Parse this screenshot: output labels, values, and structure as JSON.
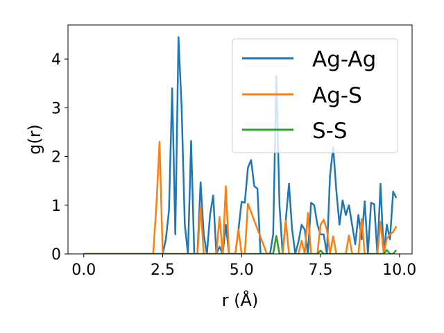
{
  "chart_data": {
    "type": "line",
    "title": "",
    "xlabel": "r (Å)",
    "ylabel": "g(r)",
    "xlim": [
      -0.5,
      10.4
    ],
    "ylim": [
      0,
      4.7
    ],
    "xticks": [
      "0.0",
      "2.5",
      "5.0",
      "7.5",
      "10.0"
    ],
    "xtick_values": [
      0,
      2.5,
      5,
      7.5,
      10
    ],
    "yticks": [
      "0",
      "1",
      "2",
      "3",
      "4"
    ],
    "ytick_values": [
      0,
      1,
      2,
      3,
      4
    ],
    "grid": false,
    "legend": {
      "placement": "upper right"
    },
    "series": [
      {
        "name": "Ag-Ag",
        "color": "#1f77b4",
        "x": [
          0.0,
          2.5,
          2.6,
          2.7,
          2.8,
          2.9,
          3.0,
          3.1,
          3.2,
          3.3,
          3.4,
          3.5,
          3.6,
          3.7,
          3.8,
          3.9,
          4.0,
          4.1,
          4.2,
          4.3,
          4.4,
          4.5,
          4.6,
          4.7,
          4.8,
          4.9,
          5.0,
          5.1,
          5.2,
          5.3,
          5.4,
          5.5,
          5.6,
          5.7,
          5.8,
          5.9,
          6.0,
          6.1,
          6.2,
          6.3,
          6.4,
          6.5,
          6.6,
          6.7,
          6.8,
          6.9,
          7.0,
          7.1,
          7.2,
          7.3,
          7.4,
          7.5,
          7.6,
          7.7,
          7.8,
          7.9,
          8.0,
          8.1,
          8.2,
          8.3,
          8.4,
          8.5,
          8.6,
          8.7,
          8.8,
          8.9,
          9.0,
          9.1,
          9.2,
          9.3,
          9.4,
          9.5,
          9.6,
          9.7,
          9.8,
          9.9
        ],
        "y": [
          0.0,
          0.0,
          0.3,
          0.9,
          3.4,
          0.4,
          4.45,
          3.0,
          0.6,
          0.0,
          2.32,
          0.0,
          0.0,
          1.47,
          0.4,
          0.0,
          0.8,
          1.2,
          0.0,
          0.15,
          0.0,
          0.6,
          0.0,
          0.0,
          0.0,
          0.5,
          1.07,
          1.05,
          1.77,
          1.93,
          1.39,
          1.34,
          0.0,
          0.0,
          0.0,
          0.0,
          0.4,
          3.65,
          1.0,
          0.0,
          0.7,
          1.44,
          0.5,
          0.0,
          0.25,
          0.6,
          0.5,
          0.0,
          1.05,
          1.0,
          0.6,
          0.4,
          0.4,
          0.0,
          1.6,
          2.19,
          1.3,
          0.6,
          1.1,
          0.8,
          1.0,
          0.6,
          0.2,
          0.8,
          0.3,
          1.08,
          0.0,
          1.05,
          1.02,
          0.0,
          1.44,
          0.0,
          0.6,
          0.3,
          1.28,
          1.15
        ]
      },
      {
        "name": "Ag-S",
        "color": "#ff7f0e",
        "x": [
          0.0,
          2.2,
          2.3,
          2.4,
          2.5,
          2.6,
          2.7,
          3.6,
          3.7,
          3.8,
          3.9,
          4.2,
          4.3,
          4.4,
          4.5,
          4.6,
          4.7,
          4.8,
          4.9,
          5.0,
          5.1,
          5.2,
          5.8,
          5.9,
          6.0,
          6.1,
          6.2,
          6.3,
          6.4,
          6.5,
          6.6,
          6.7,
          6.8,
          6.9,
          7.0,
          7.1,
          7.2,
          7.3,
          7.4,
          7.5,
          7.6,
          7.7,
          7.8,
          7.9,
          8.0,
          8.1,
          8.2,
          8.3,
          8.4,
          8.5,
          8.6,
          8.7,
          8.8,
          8.9,
          9.0,
          9.1,
          9.2,
          9.3,
          9.4,
          9.5,
          9.6,
          9.7,
          9.8,
          9.9
        ],
        "y": [
          0.0,
          0.0,
          1.0,
          2.3,
          0.0,
          0.0,
          0.0,
          0.0,
          0.98,
          0.0,
          0.0,
          0.0,
          0.76,
          0.0,
          1.39,
          0.0,
          0.0,
          0.0,
          0.5,
          0.0,
          0.0,
          1.03,
          0.0,
          0.0,
          0.0,
          0.37,
          0.0,
          0.0,
          0.68,
          0.0,
          0.0,
          0.0,
          0.0,
          0.27,
          0.0,
          0.84,
          0.0,
          0.0,
          0.0,
          0.6,
          0.7,
          0.5,
          0.0,
          0.36,
          0.0,
          0.0,
          0.0,
          0.0,
          0.38,
          0.0,
          0.0,
          0.0,
          0.72,
          0.0,
          0.0,
          0.0,
          0.0,
          0.0,
          0.66,
          0.0,
          0.32,
          0.4,
          0.45,
          0.57
        ]
      },
      {
        "name": "S-S",
        "color": "#2ca02c",
        "x": [
          0.0,
          6.0,
          6.1,
          6.2,
          7.4,
          7.5,
          7.6,
          9.5,
          9.6,
          9.7,
          9.8,
          9.9
        ],
        "y": [
          0.0,
          0.0,
          0.37,
          0.0,
          0.0,
          0.07,
          0.0,
          0.0,
          0.08,
          0.0,
          0.0,
          0.08
        ]
      }
    ]
  }
}
